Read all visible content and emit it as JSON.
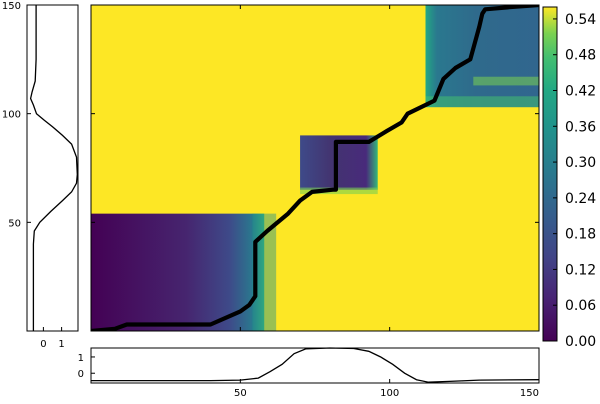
{
  "chart_data": {
    "type": "heatmap",
    "title": "",
    "xlabel": "",
    "ylabel": "",
    "xlim": [
      0,
      150
    ],
    "ylim": [
      0,
      150
    ],
    "x_ticks": [
      50,
      100,
      150
    ],
    "y_ticks": [
      50,
      100,
      150
    ],
    "colormap": "viridis",
    "colorbar": {
      "range": [
        0,
        0.56
      ],
      "ticks": [
        "0.00",
        "0.06",
        "0.12",
        "0.18",
        "0.24",
        "0.30",
        "0.36",
        "0.42",
        "0.48",
        "0.54"
      ]
    },
    "top_signal_region_starts": [
      0,
      54,
      65,
      90,
      103
    ],
    "right_signal_region_starts": [
      0,
      58,
      70,
      96,
      112
    ],
    "blocks": [
      {
        "x": [
          0,
          58
        ],
        "y": [
          0,
          54
        ],
        "level": "low"
      },
      {
        "x": [
          70,
          96
        ],
        "y": [
          65,
          90
        ],
        "level": "low"
      },
      {
        "x": [
          112,
          150
        ],
        "y": [
          103,
          150
        ],
        "level": "mid"
      }
    ],
    "warping_path": [
      [
        0,
        0
      ],
      [
        8,
        1
      ],
      [
        12,
        3
      ],
      [
        40,
        3
      ],
      [
        50,
        9
      ],
      [
        53,
        12
      ],
      [
        55,
        16
      ],
      [
        55,
        41
      ],
      [
        59,
        46
      ],
      [
        66,
        54
      ],
      [
        70,
        60
      ],
      [
        74,
        64
      ],
      [
        81,
        65
      ],
      [
        82,
        65
      ],
      [
        82,
        87
      ],
      [
        84,
        87
      ],
      [
        93,
        87
      ],
      [
        99,
        92
      ],
      [
        104,
        96
      ],
      [
        106,
        100
      ],
      [
        115,
        106
      ],
      [
        118,
        116
      ],
      [
        122,
        121
      ],
      [
        127,
        125
      ],
      [
        128,
        130
      ],
      [
        130,
        140
      ],
      [
        131,
        146
      ],
      [
        132,
        148
      ],
      [
        140,
        149
      ],
      [
        150,
        150
      ]
    ],
    "left_signal": {
      "xlim": [
        -0.9,
        1.9
      ],
      "x_ticks": [
        0,
        1
      ],
      "points": [
        [
          0,
          -0.55
        ],
        [
          40,
          -0.55
        ],
        [
          46,
          -0.5
        ],
        [
          50,
          -0.2
        ],
        [
          55,
          0.4
        ],
        [
          60,
          1.05
        ],
        [
          64,
          1.55
        ],
        [
          68,
          1.82
        ],
        [
          72,
          1.86
        ],
        [
          80,
          1.82
        ],
        [
          86,
          1.55
        ],
        [
          90,
          1.05
        ],
        [
          94,
          0.5
        ],
        [
          97,
          0.05
        ],
        [
          100,
          -0.38
        ],
        [
          104,
          -0.55
        ],
        [
          107,
          -0.7
        ],
        [
          110,
          -0.62
        ],
        [
          115,
          -0.45
        ],
        [
          125,
          -0.4
        ],
        [
          150,
          -0.4
        ]
      ]
    },
    "bottom_signal": {
      "ylim": [
        -0.6,
        1.55
      ],
      "y_ticks": [
        0,
        1
      ],
      "points": [
        [
          0,
          -0.45
        ],
        [
          40,
          -0.45
        ],
        [
          50,
          -0.42
        ],
        [
          56,
          -0.3
        ],
        [
          60,
          0.1
        ],
        [
          64,
          0.55
        ],
        [
          68,
          1.2
        ],
        [
          72,
          1.5
        ],
        [
          80,
          1.55
        ],
        [
          88,
          1.52
        ],
        [
          93,
          1.35
        ],
        [
          97,
          1.0
        ],
        [
          101,
          0.55
        ],
        [
          105,
          0.0
        ],
        [
          109,
          -0.4
        ],
        [
          113,
          -0.55
        ],
        [
          120,
          -0.5
        ],
        [
          130,
          -0.42
        ],
        [
          150,
          -0.4
        ]
      ]
    }
  }
}
